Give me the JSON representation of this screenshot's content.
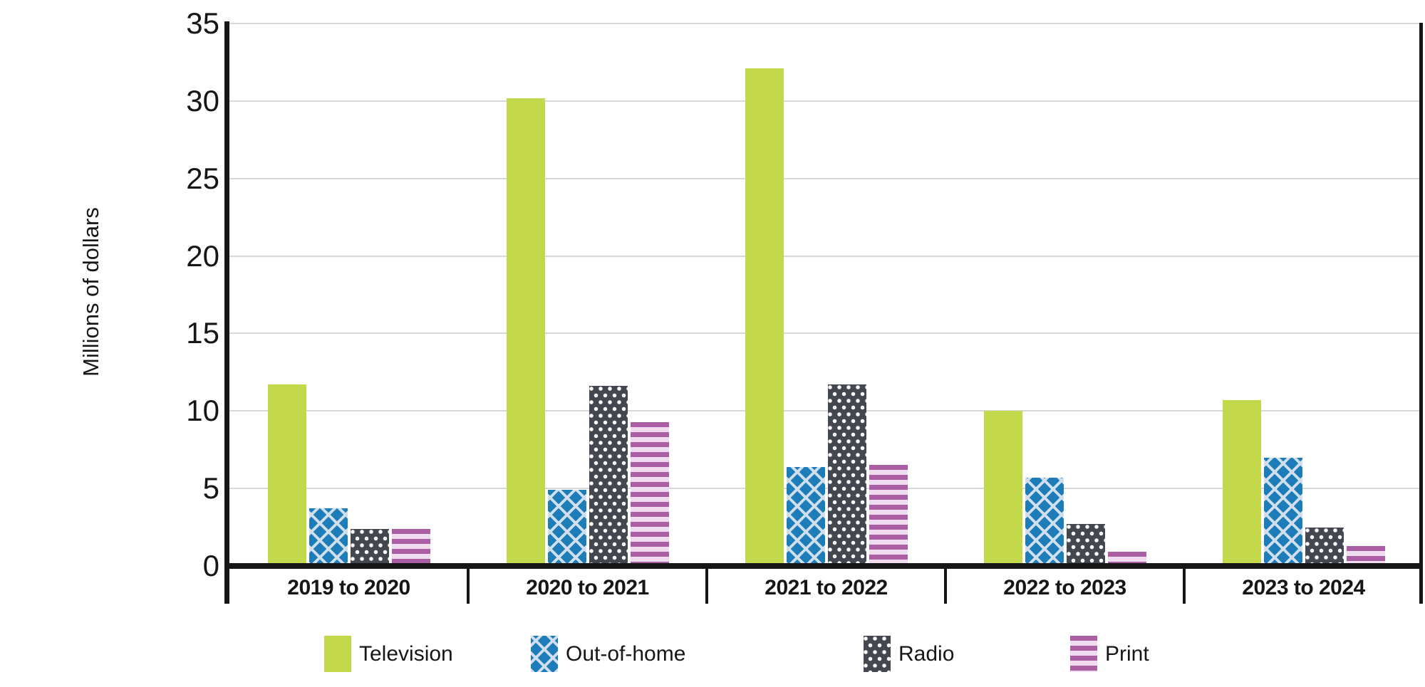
{
  "chart_data": {
    "type": "bar",
    "ylabel": "Millions of dollars",
    "categories": [
      "2019 to 2020",
      "2020 to 2021",
      "2021 to 2022",
      "2022 to 2023",
      "2023 to 2024"
    ],
    "series": [
      {
        "name": "Television",
        "values": [
          11.7,
          30.2,
          32.1,
          10.0,
          10.7
        ],
        "color": "#c3d84b",
        "pattern": "solid",
        "pattern_color": "#c3d84b"
      },
      {
        "name": "Out-of-home",
        "values": [
          3.7,
          4.9,
          6.4,
          5.7,
          7.0
        ],
        "color": "#1d7db8",
        "pattern": "crosshatch",
        "pattern_color": "#cfdfee"
      },
      {
        "name": "Radio",
        "values": [
          2.4,
          11.6,
          11.7,
          2.7,
          2.5
        ],
        "color": "#43474f",
        "pattern": "dots",
        "pattern_color": "#ffffff"
      },
      {
        "name": "Print",
        "values": [
          2.4,
          9.3,
          6.5,
          0.9,
          1.3
        ],
        "color": "#aa5fa5",
        "pattern": "stripes",
        "pattern_color": "#efdcee"
      }
    ],
    "ylim": [
      0,
      35
    ],
    "yticks": [
      0,
      5,
      10,
      15,
      20,
      25,
      30,
      35
    ],
    "grid": true,
    "legend_position": "bottom",
    "axis_color": "#161616",
    "gridline_color": "#d8d8d8",
    "text_color": "#161616"
  }
}
